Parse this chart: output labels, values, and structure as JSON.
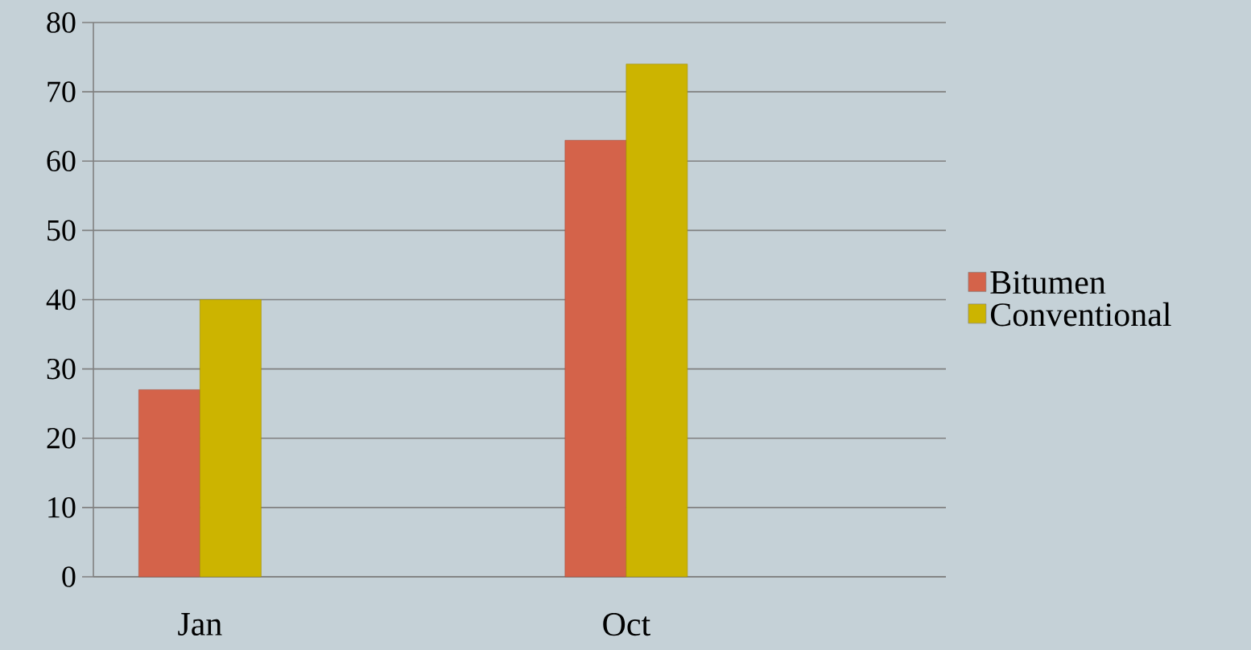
{
  "chart_data": {
    "type": "bar",
    "categories": [
      "Jan",
      null,
      "Oct",
      null
    ],
    "series": [
      {
        "name": "Bitumen",
        "color": "#d4634a",
        "values": [
          27,
          null,
          63,
          null
        ]
      },
      {
        "name": "Conventional",
        "color": "#ccb400",
        "values": [
          40,
          null,
          74,
          null
        ]
      }
    ],
    "ylim": [
      0,
      80
    ],
    "yticks": [
      0,
      10,
      20,
      30,
      40,
      50,
      60,
      70,
      80
    ],
    "grid": "y",
    "legend": "right"
  }
}
